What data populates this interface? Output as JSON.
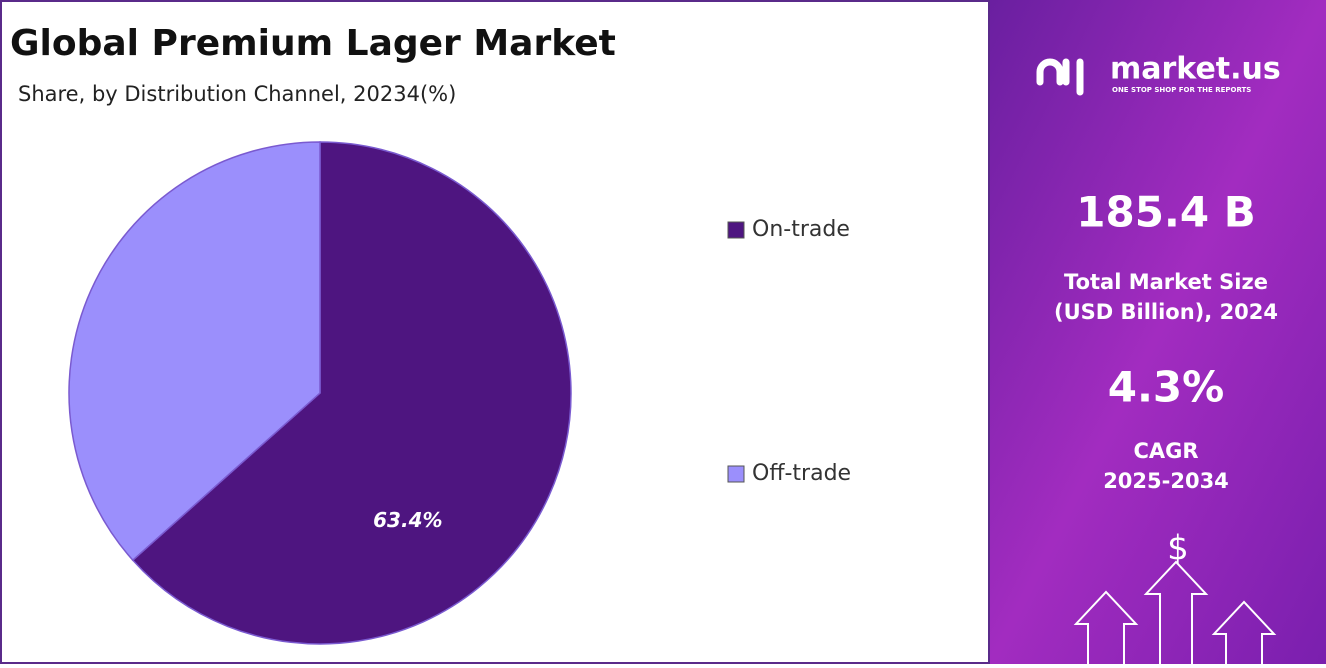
{
  "chart_data": {
    "type": "pie",
    "title": "Global Premium Lager Market",
    "subtitle": "Share, by Distribution Channel, 20234(%)",
    "categories": [
      "On-trade",
      "Off-trade"
    ],
    "values": [
      63.4,
      36.6
    ],
    "value_labels": [
      "63.4%",
      null
    ],
    "colors": [
      "#4e1580",
      "#9b8ffc"
    ],
    "legend": "right"
  },
  "side_panel": {
    "brand": "market.us",
    "tagline": "ONE STOP SHOP FOR THE REPORTS",
    "market_size": "185.4 B",
    "market_size_label": [
      "Total Market Size",
      "(USD Billion), 2024"
    ],
    "cagr": "4.3%",
    "cagr_label": [
      "CAGR",
      "2025-2034"
    ],
    "icon": "$"
  }
}
